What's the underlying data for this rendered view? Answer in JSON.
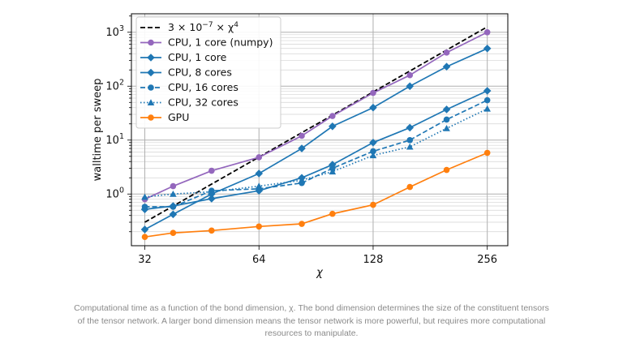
{
  "chart_data": {
    "type": "line",
    "xscale": "log2",
    "yscale": "log10",
    "xlabel": "χ",
    "ylabel": "walltime per sweep",
    "x_ticks": [
      32,
      64,
      128,
      256
    ],
    "x_tick_labels": [
      "32",
      "64",
      "128",
      "256"
    ],
    "y_tick_values": [
      1,
      10,
      100,
      1000
    ],
    "y_tick_exponents": [
      "0",
      "1",
      "2",
      "3"
    ],
    "xlim": [
      29.5,
      290
    ],
    "ylim": [
      0.11,
      2200
    ],
    "grid": true,
    "legend_position": "top-left",
    "legend_formula": {
      "coef": "3 × 10",
      "coef_exp": "−7",
      "tail": " × χ",
      "tail_exp": "4"
    },
    "series": [
      {
        "name": "CPU, 1 core (numpy)",
        "color": "#9467bd",
        "style": "solid",
        "marker": "circle",
        "x": [
          32,
          38,
          48,
          64,
          83,
          100,
          128,
          160,
          200,
          256
        ],
        "y": [
          0.8,
          1.4,
          2.7,
          4.8,
          12,
          28,
          75,
          160,
          420,
          1000
        ]
      },
      {
        "name": "CPU, 1 core",
        "color": "#1f77b4",
        "style": "solid",
        "marker": "diamond",
        "x": [
          32,
          38,
          48,
          64,
          83,
          100,
          128,
          160,
          200,
          256
        ],
        "y": [
          0.22,
          0.42,
          1.0,
          2.4,
          7,
          18,
          40,
          100,
          230,
          500
        ]
      },
      {
        "name": "CPU, 8 cores",
        "color": "#1f77b4",
        "style": "solid",
        "marker": "diamond",
        "x": [
          32,
          38,
          48,
          64,
          83,
          100,
          128,
          160,
          200,
          256
        ],
        "y": [
          0.52,
          0.6,
          0.82,
          1.15,
          2.0,
          3.5,
          9,
          17,
          37,
          82
        ]
      },
      {
        "name": "CPU, 16 cores",
        "color": "#1f77b4",
        "style": "dashed",
        "marker": "circle",
        "x": [
          32,
          38,
          48,
          64,
          83,
          100,
          128,
          160,
          200,
          256
        ],
        "y": [
          0.58,
          0.58,
          1.15,
          1.25,
          1.6,
          3.0,
          6.2,
          10,
          24,
          55
        ]
      },
      {
        "name": "CPU, 32 cores",
        "color": "#1f77b4",
        "style": "dotted",
        "marker": "triangle",
        "x": [
          32,
          38,
          48,
          64,
          83,
          100,
          128,
          160,
          200,
          256
        ],
        "y": [
          0.88,
          1.0,
          1.1,
          1.4,
          1.8,
          2.6,
          5.2,
          7.5,
          16.5,
          38
        ]
      },
      {
        "name": "GPU",
        "color": "#ff7f0e",
        "style": "solid",
        "marker": "circle",
        "x": [
          32,
          38,
          48,
          64,
          83,
          100,
          128,
          160,
          200,
          256
        ],
        "y": [
          0.16,
          0.19,
          0.21,
          0.25,
          0.28,
          0.43,
          0.63,
          1.35,
          2.8,
          5.8
        ]
      }
    ],
    "reference_line": {
      "color": "#000000",
      "style": "dashed",
      "x": [
        32,
        256
      ],
      "y": [
        0.3,
        1260
      ]
    }
  },
  "caption": "Computational time as a function of the bond dimension, χ. The bond dimension determines the size of the constituent tensors of the tensor network. A larger bond dimension means the tensor network is more powerful, but requires more computational resources to manipulate."
}
